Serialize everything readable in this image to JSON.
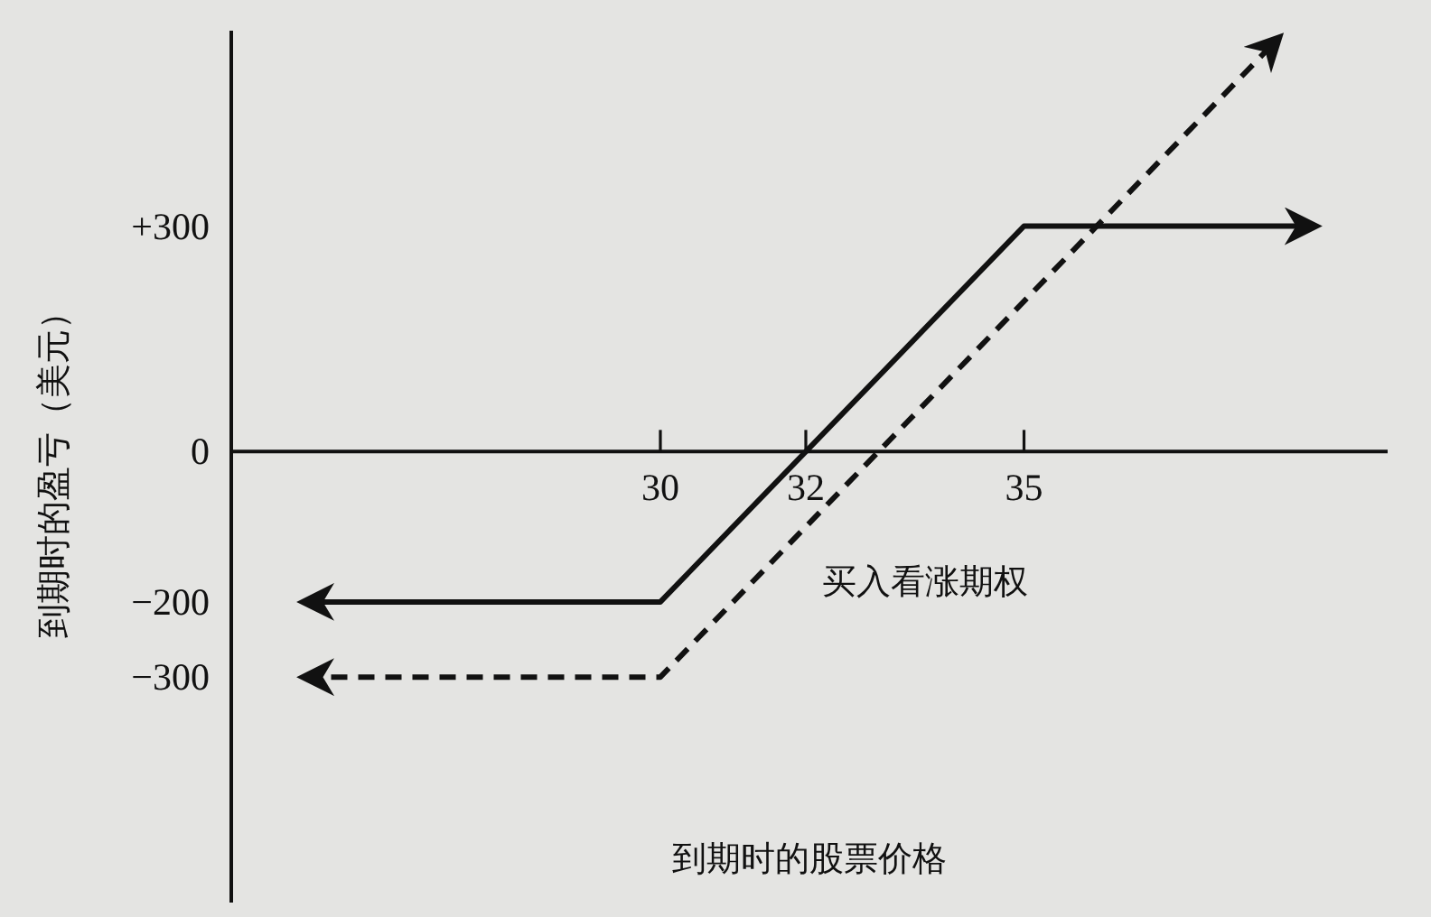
{
  "chart_data": {
    "type": "line",
    "xlabel": "到期时的股票价格",
    "ylabel": "到期时的盈亏（美元）",
    "xlim": [
      24.1,
      40
    ],
    "ylim": [
      -600,
      560
    ],
    "xticks": [
      30,
      32,
      35
    ],
    "yticks": [
      {
        "value": 300,
        "label": "+300"
      },
      0,
      {
        "value": -200,
        "label": "−200"
      },
      {
        "value": -300,
        "label": "−300"
      }
    ],
    "series": [
      {
        "x": [
          25.1,
          30,
          35,
          39
        ],
        "values": [
          -200,
          -200,
          300,
          300
        ],
        "color": "#111111",
        "line_style": "solid"
      },
      {
        "x": [
          25.1,
          30,
          38.5
        ],
        "values": [
          -300,
          -300,
          550
        ],
        "color": "#111111",
        "line_style": "dashed"
      }
    ],
    "annotations": [
      "买入看涨期权"
    ]
  }
}
